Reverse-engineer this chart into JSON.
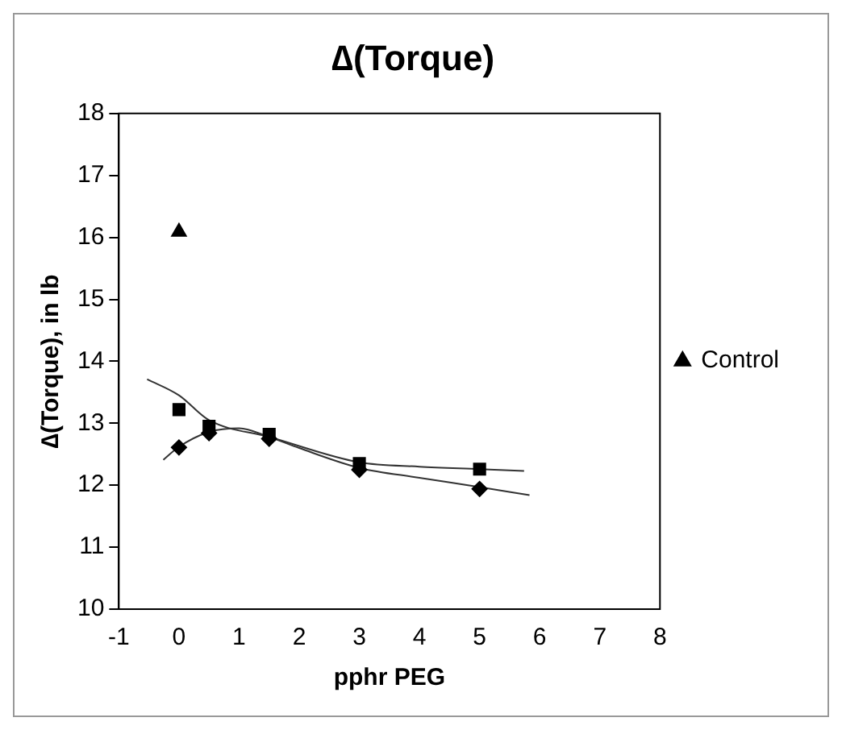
{
  "chart_data": {
    "type": "scatter",
    "title": "∆(Torque)",
    "xlabel": "pphr PEG",
    "ylabel": "∆(Torque), in lb",
    "xlim": [
      -1,
      8
    ],
    "xticks": [
      -1,
      0,
      1,
      2,
      3,
      4,
      5,
      6,
      7,
      8
    ],
    "ylim": [
      10,
      18
    ],
    "yticks": [
      10,
      11,
      12,
      13,
      14,
      15,
      16,
      17,
      18
    ],
    "grid": false,
    "legend": "right",
    "series": [
      {
        "marker": "square",
        "color": "#000000",
        "x": [
          0,
          0.5,
          1.5,
          3,
          5
        ],
        "values": [
          13.22,
          12.95,
          12.82,
          12.35,
          12.26
        ]
      },
      {
        "marker": "diamond",
        "color": "#000000",
        "x": [
          0,
          0.5,
          1.5,
          3,
          5
        ],
        "values": [
          12.61,
          12.84,
          12.75,
          12.25,
          11.94
        ]
      },
      {
        "marker": "triangle",
        "name": "Control",
        "color": "#000000",
        "x": [
          0
        ],
        "values": [
          16.09
        ]
      },
      {
        "type": "line",
        "marker": "none",
        "line_style": "solid",
        "color": "#333333",
        "x": [
          -0.53,
          0,
          0.5,
          1.5,
          3,
          4,
          5,
          5.74
        ],
        "values": [
          13.71,
          13.45,
          13.05,
          12.78,
          12.37,
          12.3,
          12.26,
          12.23
        ]
      },
      {
        "type": "line",
        "marker": "none",
        "line_style": "solid",
        "color": "#333333",
        "x": [
          -0.26,
          0,
          0.5,
          1,
          1.5,
          2,
          3,
          4,
          5,
          5.83
        ],
        "values": [
          12.41,
          12.62,
          12.86,
          12.92,
          12.78,
          12.6,
          12.28,
          12.12,
          11.97,
          11.84
        ]
      }
    ]
  }
}
